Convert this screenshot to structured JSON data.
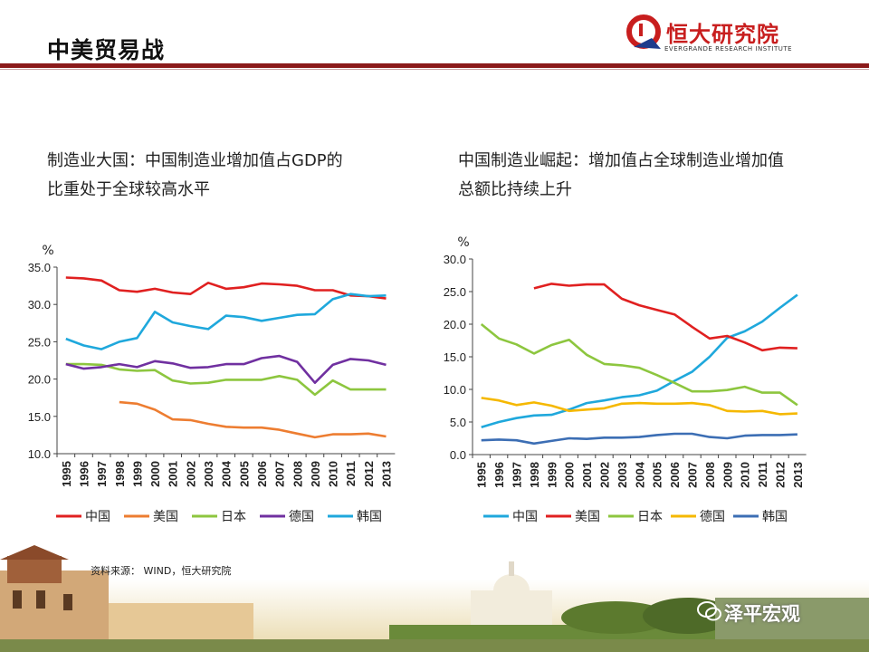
{
  "header": {
    "title": "中美贸易战"
  },
  "logo": {
    "name": "恒大研究院",
    "subtitle": "EVERGRANDE RESEARCH INSTITUTE"
  },
  "left_panel": {
    "title_line1": "制造业大国：中国制造业增加值占GDP的",
    "title_line2": "比重处于全球较高水平"
  },
  "right_panel": {
    "title_line1": "中国制造业崛起：增加值占全球制造业增加值",
    "title_line2": "总额比持续上升"
  },
  "source": "资料来源： WIND，恒大研究院",
  "watermark": "泽平宏观",
  "colors": {
    "header_rule": "#8b1a1a",
    "china": "#e02020",
    "usa": "#ed7d31",
    "japan": "#8dc63f",
    "germany": "#7030a0",
    "korea": "#1fa8dc",
    "germany_right": "#f5b800",
    "korea_right": "#3c6eb4"
  },
  "chart_data": [
    {
      "type": "line",
      "title": "",
      "ylabel": "%",
      "ylim": [
        10,
        35
      ],
      "yticks": [
        "35.0",
        "30.0",
        "25.0",
        "20.0",
        "15.0",
        "10.0"
      ],
      "categories": [
        "1995",
        "1996",
        "1997",
        "1998",
        "1999",
        "2000",
        "2001",
        "2002",
        "2003",
        "2004",
        "2005",
        "2006",
        "2007",
        "2008",
        "2009",
        "2010",
        "2011",
        "2012",
        "2013"
      ],
      "legend_position": "bottom",
      "series": [
        {
          "name": "中国",
          "color": "#e02020",
          "values": [
            33.6,
            33.5,
            33.2,
            31.9,
            31.7,
            32.1,
            31.6,
            31.4,
            32.9,
            32.1,
            32.3,
            32.8,
            32.7,
            32.5,
            31.9,
            31.9,
            31.2,
            31.1,
            30.8
          ]
        },
        {
          "name": "美国",
          "color": "#ed7d31",
          "values": [
            null,
            null,
            null,
            16.9,
            16.7,
            15.9,
            14.6,
            14.5,
            14.0,
            13.6,
            13.5,
            13.5,
            13.2,
            12.7,
            12.2,
            12.6,
            12.6,
            12.7,
            12.3
          ]
        },
        {
          "name": "日本",
          "color": "#8dc63f",
          "values": [
            22.0,
            22.0,
            21.9,
            21.3,
            21.1,
            21.2,
            19.8,
            19.4,
            19.5,
            19.9,
            19.9,
            19.9,
            20.4,
            19.9,
            17.9,
            19.8,
            18.6,
            18.6,
            18.6
          ]
        },
        {
          "name": "德国",
          "color": "#7030a0",
          "values": [
            22.0,
            21.4,
            21.6,
            22.0,
            21.6,
            22.4,
            22.1,
            21.5,
            21.6,
            22.0,
            22.0,
            22.8,
            23.1,
            22.3,
            19.5,
            21.9,
            22.7,
            22.5,
            21.9
          ]
        },
        {
          "name": "韩国",
          "color": "#1fa8dc",
          "values": [
            25.4,
            24.5,
            24.0,
            25.0,
            25.5,
            29.0,
            27.6,
            27.1,
            26.7,
            28.5,
            28.3,
            27.8,
            28.2,
            28.6,
            28.7,
            30.7,
            31.4,
            31.1,
            31.2
          ]
        }
      ]
    },
    {
      "type": "line",
      "title": "",
      "ylabel": "%",
      "ylim": [
        0,
        30
      ],
      "yticks": [
        "30.0",
        "25.0",
        "20.0",
        "15.0",
        "10.0",
        "5.0",
        "0.0"
      ],
      "categories": [
        "1995",
        "1996",
        "1997",
        "1998",
        "1999",
        "2000",
        "2001",
        "2002",
        "2003",
        "2004",
        "2005",
        "2006",
        "2007",
        "2008",
        "2009",
        "2010",
        "2011",
        "2012",
        "2013"
      ],
      "legend_position": "bottom",
      "series": [
        {
          "name": "中国",
          "color": "#1fa8dc",
          "values": [
            4.2,
            5.0,
            5.6,
            6.0,
            6.1,
            6.9,
            7.9,
            8.3,
            8.8,
            9.1,
            9.8,
            11.3,
            12.7,
            15.0,
            17.9,
            18.9,
            20.4,
            22.5,
            24.5
          ]
        },
        {
          "name": "美国",
          "color": "#e02020",
          "values": [
            null,
            null,
            null,
            25.5,
            26.2,
            25.9,
            26.1,
            26.1,
            23.9,
            22.9,
            22.2,
            21.5,
            19.6,
            17.8,
            18.2,
            17.2,
            16.0,
            16.4,
            16.3
          ]
        },
        {
          "name": "日本",
          "color": "#8dc63f",
          "values": [
            20.0,
            17.8,
            16.9,
            15.5,
            16.8,
            17.6,
            15.3,
            13.9,
            13.7,
            13.3,
            12.2,
            11.0,
            9.7,
            9.7,
            9.9,
            10.4,
            9.5,
            9.5,
            7.6
          ]
        },
        {
          "name": "德国",
          "color": "#f5b800",
          "values": [
            8.7,
            8.3,
            7.6,
            8.0,
            7.5,
            6.7,
            6.9,
            7.1,
            7.8,
            7.9,
            7.8,
            7.8,
            7.9,
            7.6,
            6.7,
            6.6,
            6.7,
            6.2,
            6.3
          ]
        },
        {
          "name": "韩国",
          "color": "#3c6eb4",
          "values": [
            2.2,
            2.3,
            2.2,
            1.7,
            2.1,
            2.5,
            2.4,
            2.6,
            2.6,
            2.7,
            3.0,
            3.2,
            3.2,
            2.7,
            2.5,
            2.9,
            3.0,
            3.0,
            3.1
          ]
        }
      ]
    }
  ]
}
